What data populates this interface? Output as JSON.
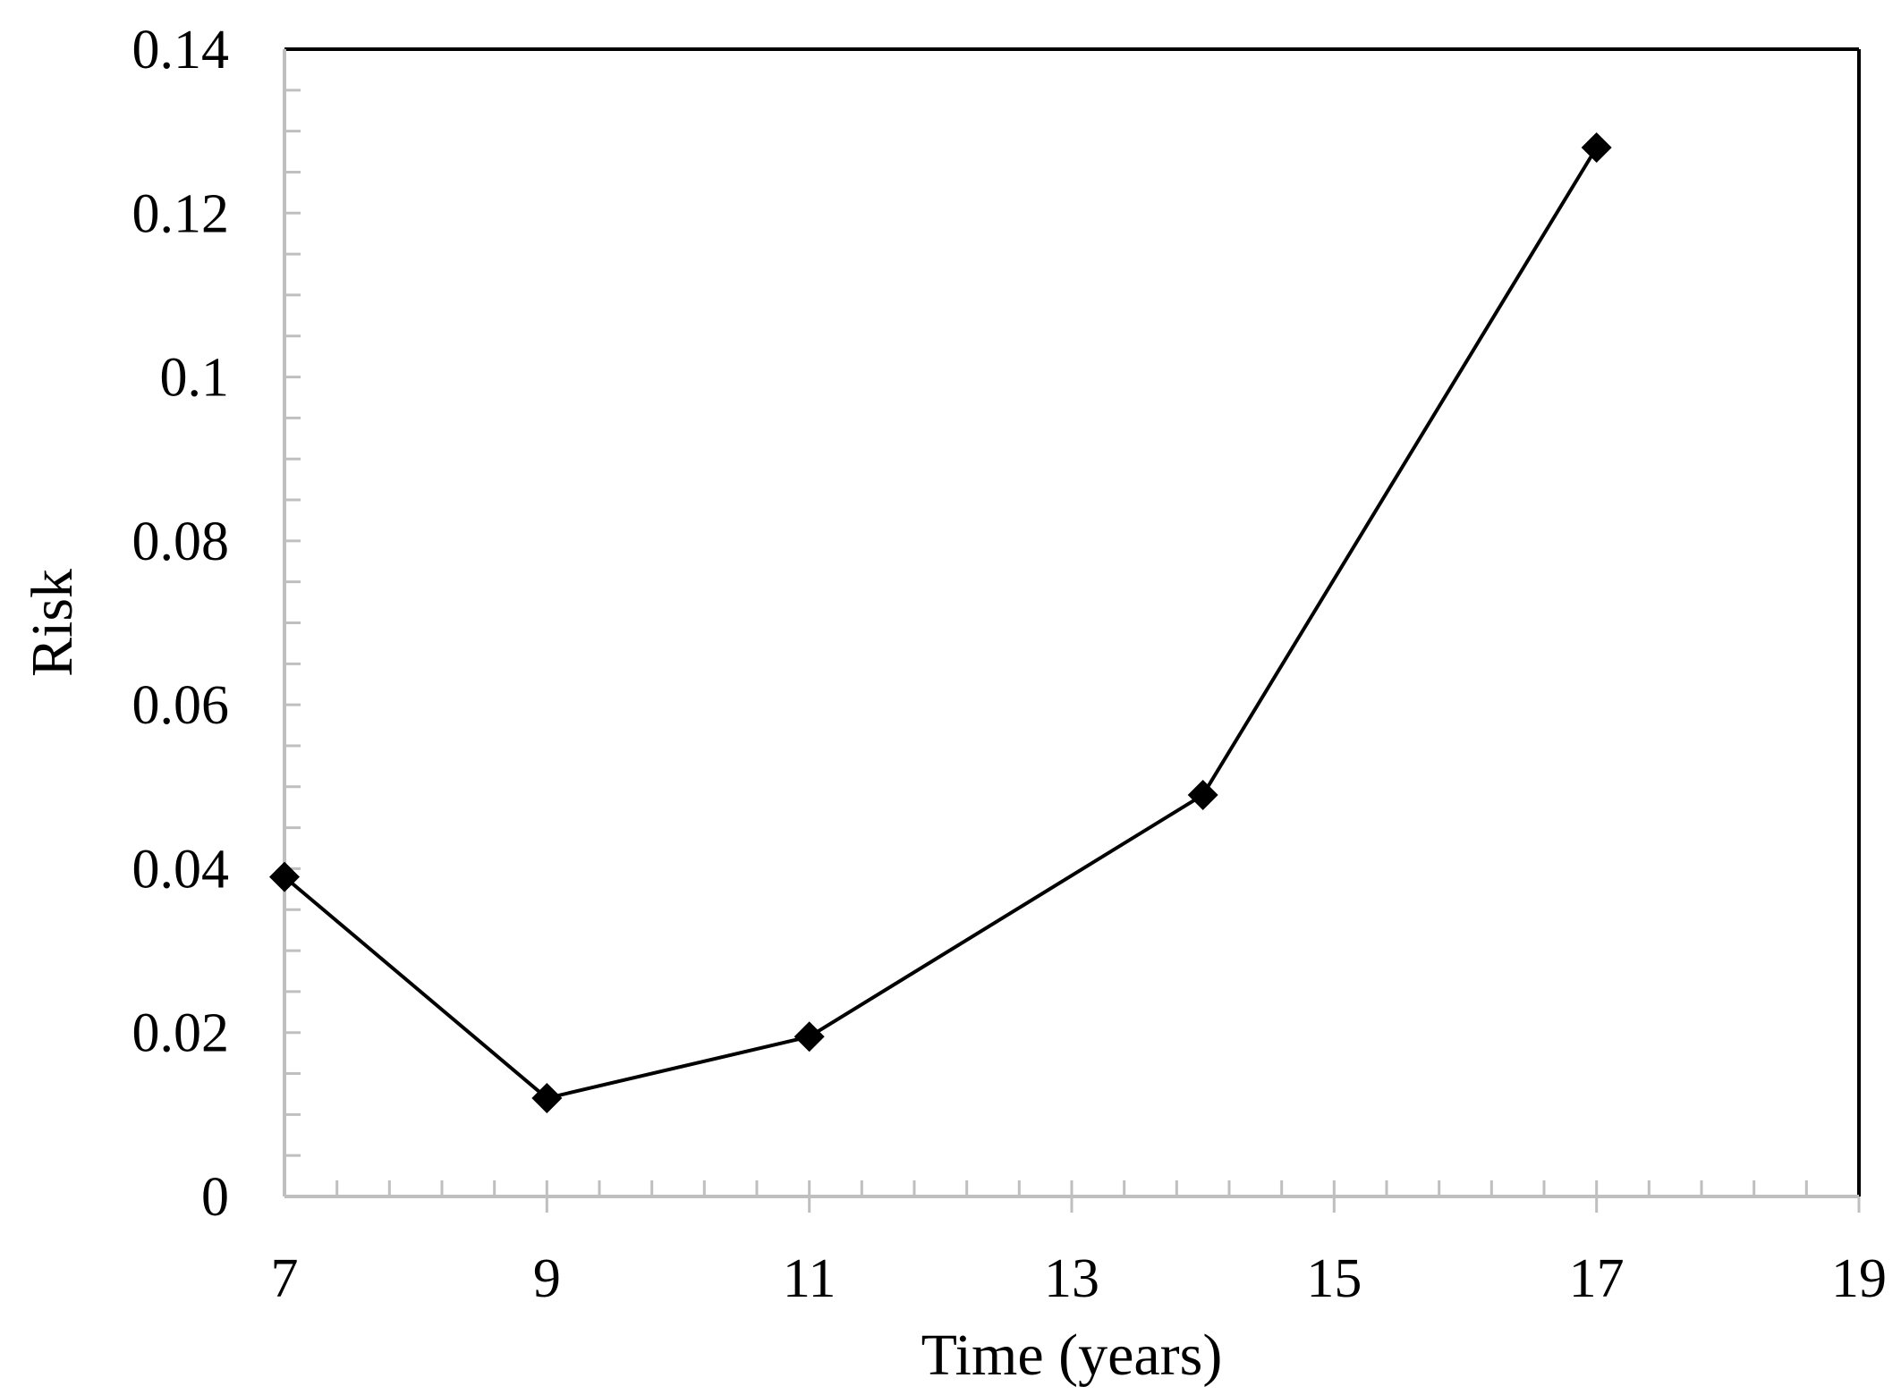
{
  "chart_data": {
    "type": "line",
    "title": "",
    "xlabel": "Time (years)",
    "ylabel": "Risk",
    "xlim": [
      7,
      19
    ],
    "ylim": [
      0,
      0.14
    ],
    "x_ticks": [
      "7",
      "9",
      "11",
      "13",
      "15",
      "17",
      "19"
    ],
    "y_ticks": [
      "0",
      "0.02",
      "0.04",
      "0.06",
      "0.08",
      "0.1",
      "0.12",
      "0.14"
    ],
    "grid": false,
    "legend": "none",
    "marker": "diamond",
    "colors": {
      "line": "#000000",
      "frame": "#000000",
      "minor_ticks": "#bfbfbf"
    },
    "series": [
      {
        "x": [
          7,
          9,
          11,
          14,
          17
        ],
        "values": [
          0.039,
          0.012,
          0.0195,
          0.049,
          0.128
        ]
      }
    ]
  }
}
